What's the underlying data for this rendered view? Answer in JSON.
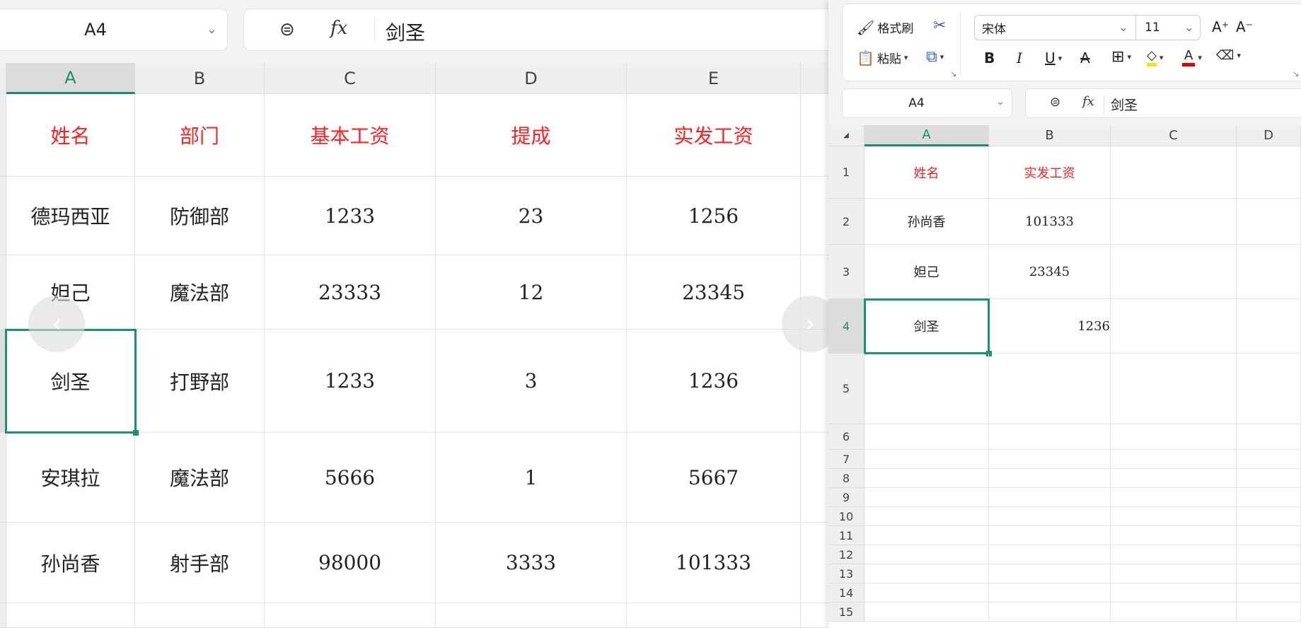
{
  "left": {
    "name_box": "A4",
    "formula": "剑圣",
    "columns": [
      "A",
      "B",
      "C",
      "D",
      "E"
    ],
    "rows": [
      [
        "姓名",
        "部门",
        "基本工资",
        "提成",
        "实发工资"
      ],
      [
        "德玛西亚",
        "防御部",
        "1233",
        "23",
        "1256"
      ],
      [
        "妲己",
        "魔法部",
        "23333",
        "12",
        "23345"
      ],
      [
        "剑圣",
        "打野部",
        "1233",
        "3",
        "1236"
      ],
      [
        "安琪拉",
        "魔法部",
        "5666",
        "1",
        "5667"
      ],
      [
        "孙尚香",
        "射手部",
        "98000",
        "3333",
        "101333"
      ],
      [
        "",
        "",
        "",
        "",
        ""
      ]
    ]
  },
  "right": {
    "ribbon": {
      "format_painter": "格式刷",
      "paste": "粘贴",
      "font_name": "宋体",
      "font_size": "11",
      "fill_color": "#f5e400",
      "font_color": "#e00000"
    },
    "name_box": "A4",
    "formula": "剑圣",
    "columns": [
      "A",
      "B",
      "C",
      "D"
    ],
    "row_numbers": [
      "1",
      "2",
      "3",
      "4",
      "5",
      "6",
      "7",
      "8",
      "9",
      "10",
      "11",
      "12",
      "13",
      "14",
      "15"
    ],
    "rows": [
      [
        "姓名",
        "实发工资",
        "",
        ""
      ],
      [
        "孙尚香",
        "101333",
        "",
        ""
      ],
      [
        "妲己",
        "23345",
        "",
        ""
      ],
      [
        "剑圣",
        "1236",
        "",
        ""
      ]
    ]
  },
  "accent": "#1a9467",
  "header_color": "#ff2020"
}
